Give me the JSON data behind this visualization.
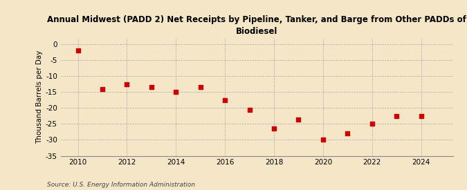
{
  "title": "Annual Midwest (PADD 2) Net Receipts by Pipeline, Tanker, and Barge from Other PADDs of\nBiodiesel",
  "ylabel": "Thousand Barrels per Day",
  "source": "Source: U.S. Energy Information Administration",
  "background_color": "#f5e6c8",
  "marker_color": "#cc0000",
  "years": [
    2010,
    2011,
    2012,
    2013,
    2014,
    2015,
    2016,
    2017,
    2018,
    2019,
    2020,
    2021,
    2022,
    2023,
    2024
  ],
  "values": [
    -2.0,
    -14.0,
    -12.5,
    -13.5,
    -15.0,
    -13.5,
    -17.5,
    -20.5,
    -26.5,
    -23.5,
    -30.0,
    -28.0,
    -25.0,
    -22.5,
    -22.5
  ],
  "ylim": [
    -35,
    2
  ],
  "yticks": [
    0,
    -5,
    -10,
    -15,
    -20,
    -25,
    -30,
    -35
  ],
  "xlim": [
    2009.3,
    2025.3
  ],
  "xticks": [
    2010,
    2012,
    2014,
    2016,
    2018,
    2020,
    2022,
    2024
  ]
}
